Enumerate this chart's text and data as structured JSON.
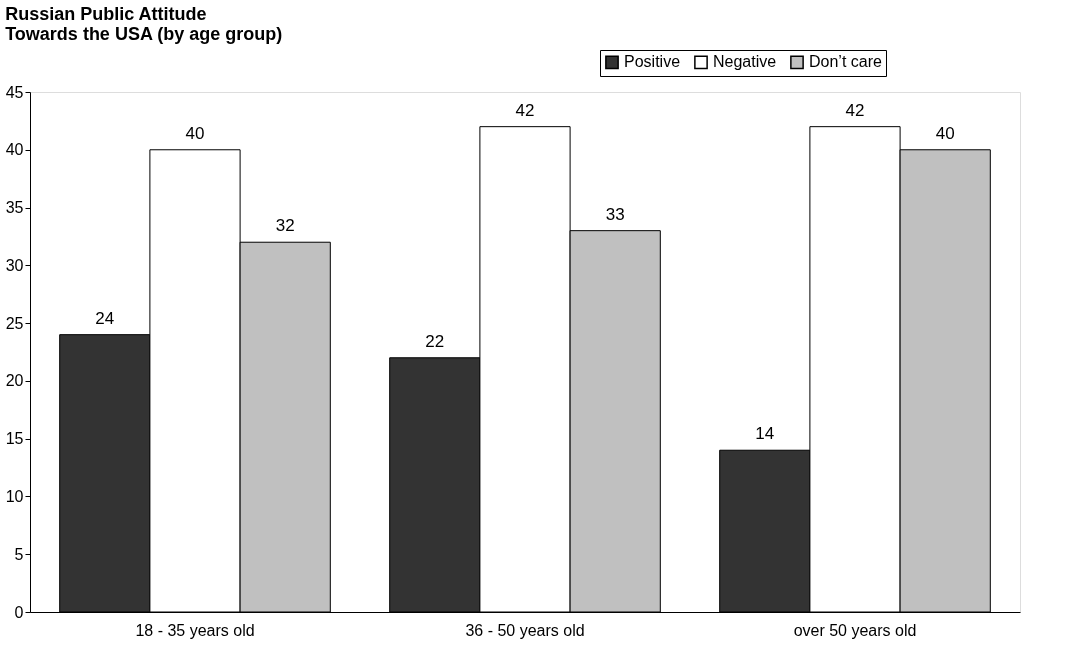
{
  "chart_data": {
    "type": "bar",
    "title": "Russian Public Attitude\nTowards the USA (by age group)",
    "categories": [
      "18 - 35 years old",
      "36 - 50 years old",
      "over 50 years old"
    ],
    "series": [
      {
        "name": "Positive",
        "color": "#333333",
        "values": [
          24,
          22,
          14
        ]
      },
      {
        "name": "Negative",
        "color": "#ffffff",
        "values": [
          40,
          42,
          42
        ]
      },
      {
        "name": "Don’t care",
        "color": "#c0c0c0",
        "values": [
          32,
          33,
          40
        ]
      }
    ],
    "ylim": [
      0,
      45
    ],
    "yticks": [
      0,
      5,
      10,
      15,
      20,
      25,
      30,
      35,
      40,
      45
    ],
    "grid": false,
    "legend": "top right",
    "data_labels": true
  }
}
